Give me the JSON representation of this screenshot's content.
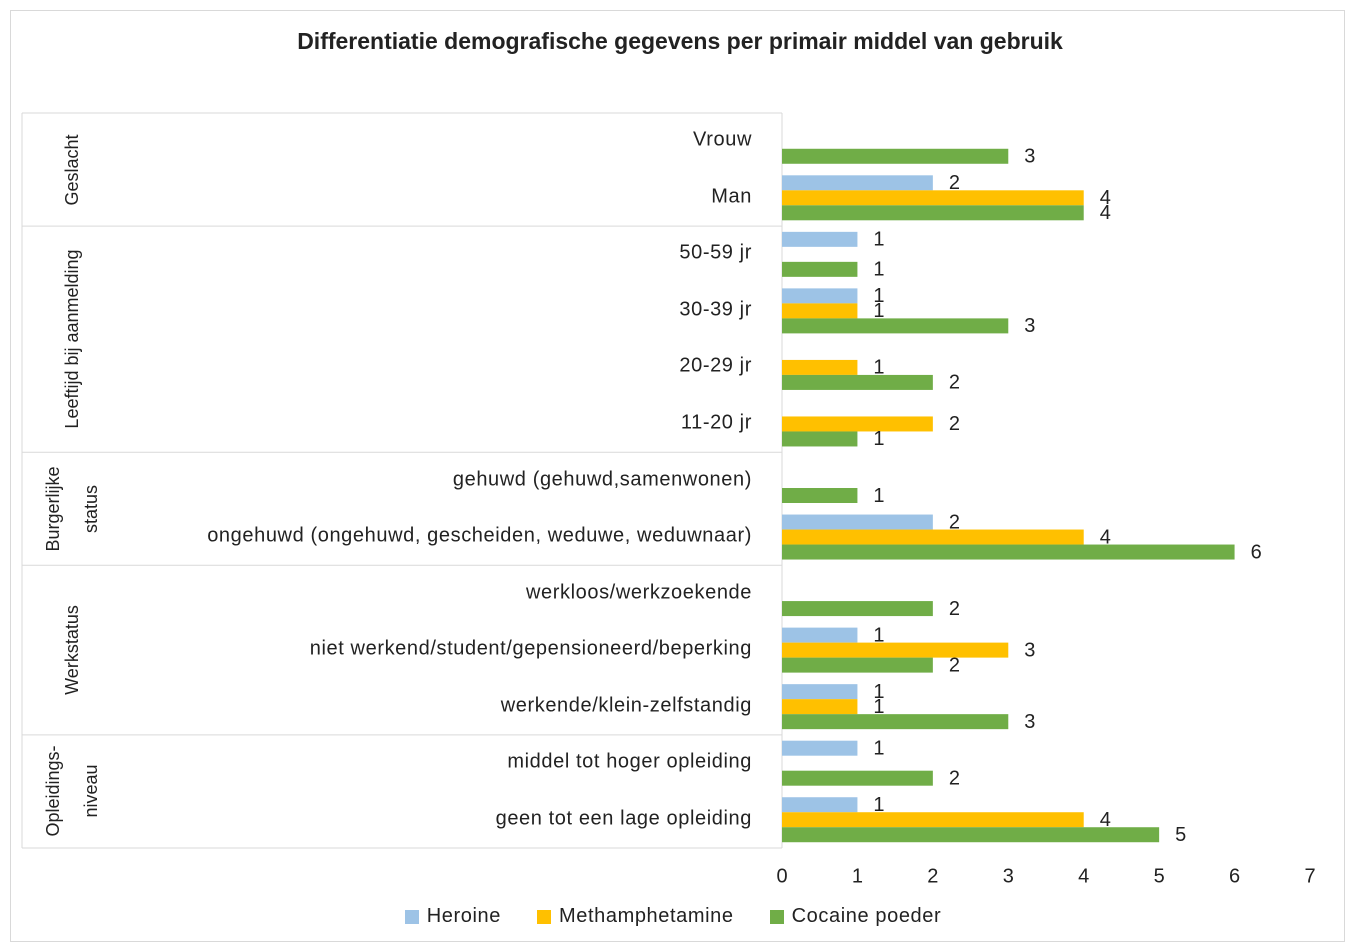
{
  "chart_data": {
    "type": "bar",
    "orientation": "horizontal",
    "title": "Differentiatie demografische gegevens per primair middel van gebruik",
    "categories": [
      "Vrouw",
      "Man",
      "50-59 jr",
      "30-39 jr",
      "20-29 jr",
      "11-20 jr",
      "gehuwd (gehuwd,samenwonen)",
      "ongehuwd (ongehuwd, gescheiden, weduwe, weduwnaar)",
      "werkloos/werkzoekende",
      "niet werkend/student/gepensioneerd/beperking",
      "werkende/klein-zelfstandig",
      "middel tot hoger opleiding",
      "geen tot een lage opleiding"
    ],
    "groups": [
      {
        "label": "Geslacht",
        "count": 2
      },
      {
        "label": "Leeftijd bij aanmelding",
        "count": 4
      },
      {
        "label": "Burgerlijke status",
        "count": 2
      },
      {
        "label": "Werkstatus",
        "count": 3
      },
      {
        "label": "Opleidings-niveau",
        "count": 2
      }
    ],
    "series": [
      {
        "name": "Heroine",
        "color": "#9dc3e6",
        "values": [
          null,
          2,
          1,
          1,
          null,
          null,
          null,
          2,
          null,
          1,
          1,
          1,
          1
        ]
      },
      {
        "name": "Methamphetamine",
        "color": "#ffc000",
        "values": [
          null,
          4,
          null,
          1,
          1,
          2,
          null,
          4,
          null,
          3,
          1,
          null,
          4
        ]
      },
      {
        "name": "Cocaine poeder",
        "color": "#70ad47",
        "values": [
          3,
          4,
          1,
          3,
          2,
          1,
          1,
          6,
          2,
          2,
          3,
          2,
          5
        ]
      }
    ],
    "xlim": [
      0,
      7
    ],
    "xticks": [
      0,
      1,
      2,
      3,
      4,
      5,
      6,
      7
    ],
    "grid": false,
    "legend": "bottom"
  }
}
